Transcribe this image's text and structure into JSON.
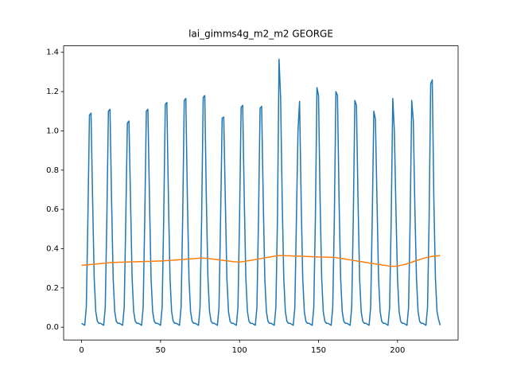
{
  "chart_data": {
    "type": "line",
    "title": "lai_gimms4g_m2_m2 GEORGE",
    "x": [
      0,
      1,
      2,
      3,
      4,
      5,
      6,
      7,
      8,
      9,
      10,
      11,
      12,
      13,
      14,
      15,
      16,
      17,
      18,
      19,
      20,
      21,
      22,
      23,
      24,
      25,
      26,
      27,
      28,
      29,
      30,
      31,
      32,
      33,
      34,
      35,
      36,
      37,
      38,
      39,
      40,
      41,
      42,
      43,
      44,
      45,
      46,
      47,
      48,
      49,
      50,
      51,
      52,
      53,
      54,
      55,
      56,
      57,
      58,
      59,
      60,
      61,
      62,
      63,
      64,
      65,
      66,
      67,
      68,
      69,
      70,
      71,
      72,
      73,
      74,
      75,
      76,
      77,
      78,
      79,
      80,
      81,
      82,
      83,
      84,
      85,
      86,
      87,
      88,
      89,
      90,
      91,
      92,
      93,
      94,
      95,
      96,
      97,
      98,
      99,
      100,
      101,
      102,
      103,
      104,
      105,
      106,
      107,
      108,
      109,
      110,
      111,
      112,
      113,
      114,
      115,
      116,
      117,
      118,
      119,
      120,
      121,
      122,
      123,
      124,
      125,
      126,
      127,
      128,
      129,
      130,
      131,
      132,
      133,
      134,
      135,
      136,
      137,
      138,
      139,
      140,
      141,
      142,
      143,
      144,
      145,
      146,
      147,
      148,
      149,
      150,
      151,
      152,
      153,
      154,
      155,
      156,
      157,
      158,
      159,
      160,
      161,
      162,
      163,
      164,
      165,
      166,
      167,
      168,
      169,
      170,
      171,
      172,
      173,
      174,
      175,
      176,
      177,
      178,
      179,
      180,
      181,
      182,
      183,
      184,
      185,
      186,
      187,
      188,
      189,
      190,
      191,
      192,
      193,
      194,
      195,
      196,
      197,
      198,
      199,
      200,
      201,
      202,
      203,
      204,
      205,
      206,
      207,
      208,
      209,
      210,
      211,
      212,
      213,
      214,
      215,
      216,
      217,
      218,
      219,
      220,
      221,
      222,
      223,
      224,
      225,
      226,
      227
    ],
    "series": [
      {
        "color": "#1f77b4",
        "values": [
          0.02,
          0.015,
          0.01,
          0.1,
          0.55,
          1.08,
          1.09,
          0.65,
          0.25,
          0.08,
          0.03,
          0.02,
          0.02,
          0.015,
          0.01,
          0.1,
          0.55,
          1.1,
          1.11,
          0.65,
          0.25,
          0.08,
          0.03,
          0.02,
          0.02,
          0.015,
          0.01,
          0.1,
          0.55,
          1.04,
          1.05,
          0.65,
          0.25,
          0.08,
          0.03,
          0.02,
          0.02,
          0.015,
          0.01,
          0.1,
          0.55,
          1.1,
          1.11,
          0.65,
          0.25,
          0.08,
          0.03,
          0.02,
          0.02,
          0.015,
          0.01,
          0.1,
          0.55,
          1.135,
          1.145,
          0.65,
          0.25,
          0.08,
          0.03,
          0.02,
          0.02,
          0.015,
          0.01,
          0.1,
          0.55,
          1.155,
          1.165,
          0.65,
          0.25,
          0.08,
          0.03,
          0.02,
          0.02,
          0.015,
          0.01,
          0.1,
          0.55,
          1.17,
          1.18,
          0.65,
          0.25,
          0.08,
          0.03,
          0.02,
          0.02,
          0.015,
          0.01,
          0.1,
          0.55,
          1.065,
          1.07,
          0.65,
          0.25,
          0.08,
          0.03,
          0.02,
          0.02,
          0.015,
          0.01,
          0.1,
          0.55,
          1.12,
          1.13,
          0.65,
          0.25,
          0.08,
          0.03,
          0.02,
          0.02,
          0.015,
          0.01,
          0.1,
          0.55,
          1.115,
          1.125,
          0.65,
          0.25,
          0.08,
          0.03,
          0.02,
          0.02,
          0.015,
          0.01,
          0.1,
          0.55,
          1.365,
          1.17,
          0.65,
          0.25,
          0.08,
          0.03,
          0.02,
          0.02,
          0.015,
          0.01,
          0.1,
          0.55,
          1.0,
          1.15,
          0.65,
          0.25,
          0.08,
          0.03,
          0.02,
          0.02,
          0.015,
          0.01,
          0.1,
          0.55,
          1.22,
          1.18,
          0.65,
          0.25,
          0.08,
          0.03,
          0.02,
          0.02,
          0.015,
          0.01,
          0.1,
          0.55,
          1.2,
          1.18,
          0.65,
          0.25,
          0.08,
          0.03,
          0.02,
          0.02,
          0.015,
          0.01,
          0.1,
          0.55,
          1.155,
          1.13,
          0.65,
          0.25,
          0.08,
          0.03,
          0.02,
          0.02,
          0.015,
          0.01,
          0.1,
          0.55,
          1.1,
          1.06,
          0.65,
          0.25,
          0.08,
          0.03,
          0.02,
          0.02,
          0.015,
          0.01,
          0.1,
          0.55,
          1.165,
          1.0,
          0.6,
          0.25,
          0.08,
          0.03,
          0.02,
          0.02,
          0.015,
          0.01,
          0.1,
          0.55,
          1.155,
          1.05,
          0.6,
          0.25,
          0.08,
          0.03,
          0.02,
          0.02,
          0.015,
          0.01,
          0.1,
          0.55,
          1.24,
          1.26,
          0.65,
          0.25,
          0.08,
          0.04,
          0.01
        ]
      },
      {
        "color": "#ff7f0e",
        "values": [
          0.315,
          0.316,
          0.317,
          0.317,
          0.318,
          0.319,
          0.32,
          0.32,
          0.321,
          0.322,
          0.323,
          0.323,
          0.324,
          0.325,
          0.326,
          0.326,
          0.327,
          0.328,
          0.329,
          0.329,
          0.33,
          0.33,
          0.33,
          0.331,
          0.331,
          0.331,
          0.331,
          0.332,
          0.332,
          0.332,
          0.332,
          0.333,
          0.333,
          0.333,
          0.333,
          0.334,
          0.334,
          0.334,
          0.334,
          0.334,
          0.335,
          0.335,
          0.335,
          0.335,
          0.336,
          0.336,
          0.336,
          0.336,
          0.337,
          0.337,
          0.337,
          0.338,
          0.338,
          0.339,
          0.339,
          0.34,
          0.34,
          0.341,
          0.341,
          0.342,
          0.342,
          0.343,
          0.344,
          0.344,
          0.345,
          0.345,
          0.346,
          0.347,
          0.347,
          0.348,
          0.348,
          0.349,
          0.35,
          0.35,
          0.351,
          0.351,
          0.352,
          0.352,
          0.352,
          0.351,
          0.35,
          0.349,
          0.348,
          0.347,
          0.346,
          0.345,
          0.344,
          0.343,
          0.342,
          0.341,
          0.34,
          0.339,
          0.338,
          0.337,
          0.336,
          0.335,
          0.334,
          0.333,
          0.333,
          0.332,
          0.332,
          0.333,
          0.334,
          0.335,
          0.336,
          0.338,
          0.339,
          0.34,
          0.342,
          0.343,
          0.345,
          0.346,
          0.348,
          0.349,
          0.35,
          0.352,
          0.353,
          0.355,
          0.356,
          0.357,
          0.359,
          0.36,
          0.362,
          0.363,
          0.364,
          0.365,
          0.365,
          0.365,
          0.365,
          0.364,
          0.364,
          0.364,
          0.364,
          0.363,
          0.363,
          0.363,
          0.362,
          0.362,
          0.362,
          0.362,
          0.361,
          0.361,
          0.361,
          0.36,
          0.36,
          0.36,
          0.359,
          0.359,
          0.359,
          0.358,
          0.358,
          0.358,
          0.358,
          0.357,
          0.357,
          0.357,
          0.357,
          0.356,
          0.356,
          0.356,
          0.356,
          0.354,
          0.353,
          0.352,
          0.35,
          0.349,
          0.348,
          0.347,
          0.345,
          0.344,
          0.343,
          0.342,
          0.34,
          0.339,
          0.338,
          0.336,
          0.335,
          0.334,
          0.333,
          0.331,
          0.33,
          0.329,
          0.327,
          0.326,
          0.325,
          0.324,
          0.322,
          0.321,
          0.32,
          0.319,
          0.317,
          0.316,
          0.315,
          0.314,
          0.312,
          0.311,
          0.31,
          0.31,
          0.31,
          0.311,
          0.312,
          0.313,
          0.315,
          0.317,
          0.319,
          0.321,
          0.323,
          0.326,
          0.328,
          0.331,
          0.334,
          0.337,
          0.34,
          0.342,
          0.345,
          0.347,
          0.35,
          0.352,
          0.354,
          0.356,
          0.358,
          0.36,
          0.361,
          0.362,
          0.363,
          0.364,
          0.364,
          0.365
        ]
      }
    ],
    "xlim": [
      -11.35,
      238.35
    ],
    "xticks": [
      0,
      50,
      100,
      150,
      200
    ],
    "ylim": [
      -0.065,
      1.433
    ],
    "yticks": [
      {
        "value": 0,
        "label": "0.0"
      },
      0.2,
      0.4,
      0.6,
      0.8,
      {
        "value": 1,
        "label": "1.0"
      },
      1.2,
      1.4
    ]
  }
}
